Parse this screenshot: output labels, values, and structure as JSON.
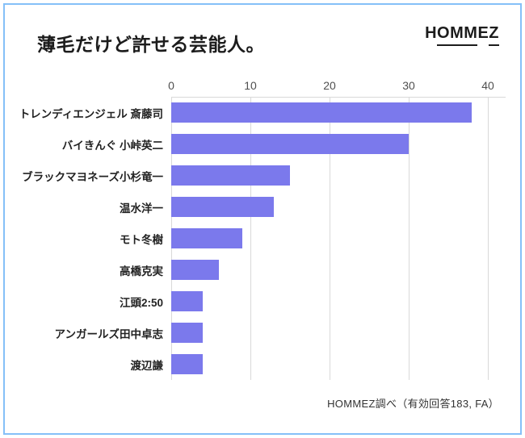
{
  "header": {
    "title": "薄毛だけど許せる芸能人。",
    "logo_segments": [
      {
        "text": "H",
        "underline": false
      },
      {
        "text": "OMM",
        "underline": true
      },
      {
        "text": "E",
        "underline": false
      },
      {
        "text": "Z",
        "underline": true
      }
    ]
  },
  "chart_data": {
    "type": "bar",
    "orientation": "horizontal",
    "title": "薄毛だけど許せる芸能人。",
    "categories": [
      "トレンディエンジェル 斎藤司",
      "バイきんぐ 小峠英二",
      "ブラックマヨネーズ小杉竜一",
      "温水洋一",
      "モト冬樹",
      "高橋克実",
      "江頭2:50",
      "アンガールズ田中卓志",
      "渡辺謙"
    ],
    "values": [
      38,
      30,
      15,
      13,
      9,
      6,
      4,
      4,
      4
    ],
    "xlabel": "",
    "ylabel": "",
    "xticks": [
      0,
      10,
      20,
      30,
      40
    ],
    "xlim": [
      0,
      42.2
    ],
    "grid": true,
    "legend": false
  },
  "footer": {
    "source_note": "HOMMEZ調べ（有効回答183, FA）"
  },
  "colors": {
    "bar": "#7b79ec",
    "frame_border": "#85c0f8",
    "gridline": "#d9d9d9",
    "tick_text": "#4f4f4f",
    "label_text": "#222222",
    "title_text": "#1c1c1c"
  }
}
